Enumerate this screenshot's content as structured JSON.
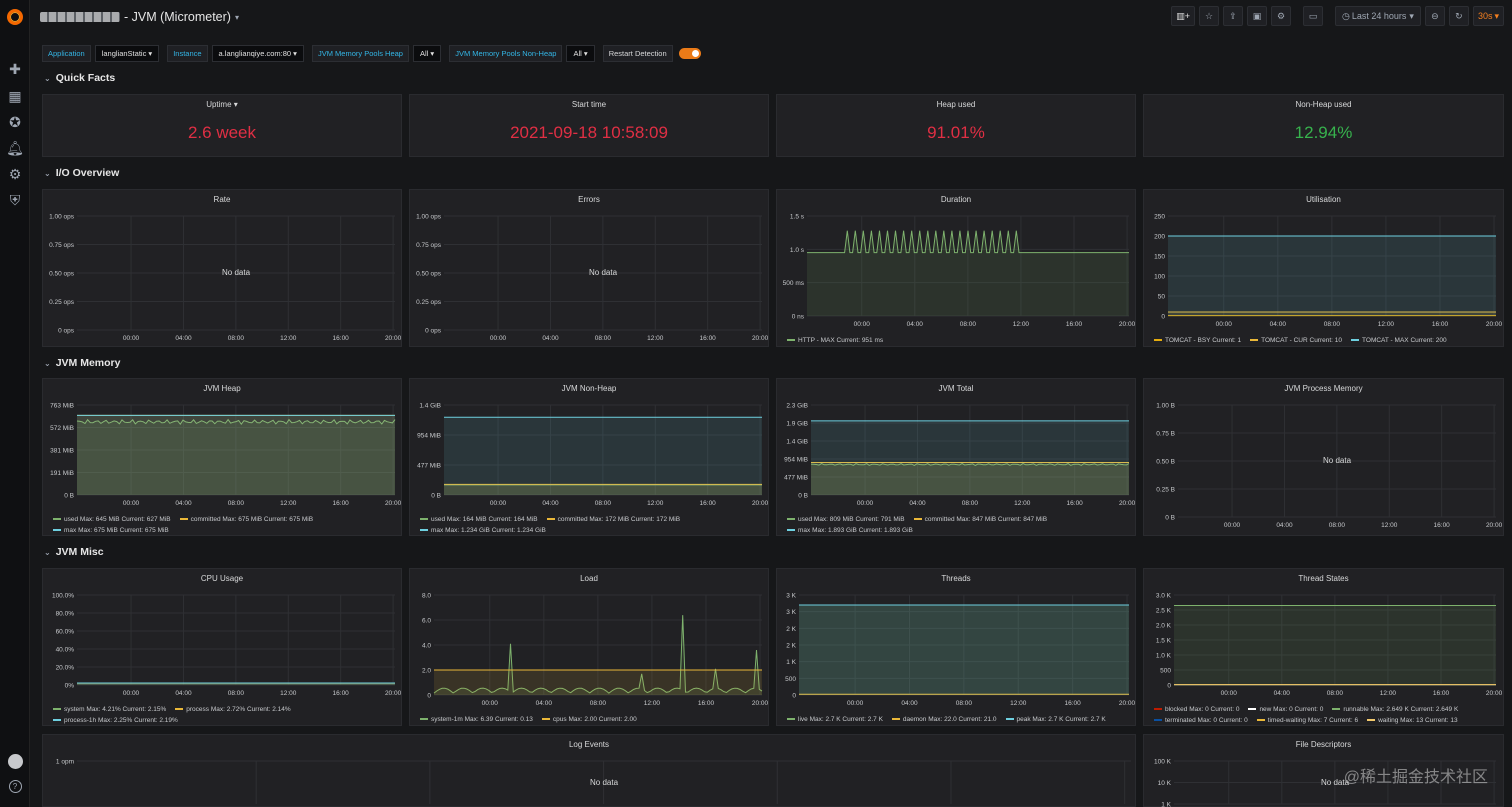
{
  "header": {
    "title": "- JVM (Micrometer)",
    "time_range": "Last 24 hours",
    "refresh": "30s"
  },
  "variables": [
    {
      "label": "Application",
      "value": "langlianStatic"
    },
    {
      "label": "Instance",
      "value": "a.langlianqiye.com:80"
    },
    {
      "label": "JVM Memory Pools Heap",
      "value": "All"
    },
    {
      "label": "JVM Memory Pools Non-Heap",
      "value": "All"
    }
  ],
  "restart_detection": {
    "label": "Restart Detection",
    "enabled": true
  },
  "rows": {
    "quick_facts": "Quick Facts",
    "io_overview": "I/O Overview",
    "jvm_memory": "JVM Memory",
    "jvm_misc": "JVM Misc"
  },
  "stats": [
    {
      "title": "Uptime",
      "value": "2.6 week",
      "color": "#e02f44"
    },
    {
      "title": "Start time",
      "value": "2021-09-18 10:58:09",
      "color": "#e02f44"
    },
    {
      "title": "Heap used",
      "value": "91.01%",
      "color": "#e02f44"
    },
    {
      "title": "Non-Heap used",
      "value": "12.94%",
      "color": "#37b24d"
    }
  ],
  "no_data": "No data",
  "x_ticks": [
    "00:00",
    "04:00",
    "08:00",
    "12:00",
    "16:00",
    "20:00"
  ],
  "chart_data": [
    {
      "title": "Rate",
      "type": "line",
      "y_ticks": [
        "1.00 ops",
        "0.75 ops",
        "0.50 ops",
        "0.25 ops",
        "0 ops"
      ],
      "series": []
    },
    {
      "title": "Errors",
      "type": "line",
      "y_ticks": [
        "1.00 ops",
        "0.75 ops",
        "0.50 ops",
        "0.25 ops",
        "0 ops"
      ],
      "series": []
    },
    {
      "title": "Duration",
      "type": "line",
      "y_ticks": [
        "1.5 s",
        "1.0 s",
        "500 ms",
        "0 ns"
      ],
      "ylim": [
        0,
        1.5
      ],
      "series": [
        {
          "name": "HTTP - MAX",
          "legend": "Current: 951 ms",
          "color": "#7eb26d",
          "base": 0.951,
          "spike": 1.28
        }
      ]
    },
    {
      "title": "Utilisation",
      "type": "line",
      "y_ticks": [
        "250",
        "200",
        "150",
        "100",
        "50",
        "0"
      ],
      "ylim": [
        0,
        250
      ],
      "series": [
        {
          "name": "TOMCAT - BSY",
          "legend": "Current: 1",
          "color": "#e5ac0e",
          "value": 1
        },
        {
          "name": "TOMCAT - CUR",
          "legend": "Current: 10",
          "color": "#eab839",
          "value": 10
        },
        {
          "name": "TOMCAT - MAX",
          "legend": "Current: 200",
          "color": "#6ed0e0",
          "value": 200
        }
      ]
    },
    {
      "title": "JVM Heap",
      "type": "area",
      "y_ticks": [
        "763 MiB",
        "572 MiB",
        "381 MiB",
        "191 MiB",
        "0 B"
      ],
      "ylim": [
        0,
        763
      ],
      "series": [
        {
          "name": "used",
          "legend": "Max: 645 MiB  Current: 627 MiB",
          "color": "#7eb26d",
          "value": 620,
          "wave": 25
        },
        {
          "name": "committed",
          "legend": "Max: 675 MiB  Current: 675 MiB",
          "color": "#eab839",
          "value": 675
        },
        {
          "name": "max",
          "legend": "Max: 675 MiB  Current: 675 MiB",
          "color": "#6ed0e0",
          "value": 675
        }
      ]
    },
    {
      "title": "JVM Non-Heap",
      "type": "area",
      "y_ticks": [
        "1.4 GiB",
        "954 MiB",
        "477 MiB",
        "0 B"
      ],
      "ylim": [
        0,
        1.43
      ],
      "series": [
        {
          "name": "used",
          "legend": "Max: 164 MiB  Current: 164 MiB",
          "color": "#7eb26d",
          "value": 0.16
        },
        {
          "name": "committed",
          "legend": "Max: 172 MiB  Current: 172 MiB",
          "color": "#eab839",
          "value": 0.168
        },
        {
          "name": "max",
          "legend": "Max: 1.234 GiB  Current: 1.234 GiB",
          "color": "#6ed0e0",
          "value": 1.234
        }
      ]
    },
    {
      "title": "JVM Total",
      "type": "area",
      "y_ticks": [
        "2.3 GiB",
        "1.9 GiB",
        "1.4 GiB",
        "954 MiB",
        "477 MiB",
        "0 B"
      ],
      "ylim": [
        0,
        2.3
      ],
      "series": [
        {
          "name": "used",
          "legend": "Max: 809 MiB  Current: 791 MiB",
          "color": "#7eb26d",
          "value": 0.78,
          "wave": 0.03
        },
        {
          "name": "committed",
          "legend": "Max: 847 MiB  Current: 847 MiB",
          "color": "#eab839",
          "value": 0.83
        },
        {
          "name": "max",
          "legend": "Max: 1.893 GiB  Current: 1.893 GiB",
          "color": "#6ed0e0",
          "value": 1.893
        }
      ]
    },
    {
      "title": "JVM Process Memory",
      "type": "line",
      "y_ticks": [
        "1.00 B",
        "0.75 B",
        "0.50 B",
        "0.25 B",
        "0 B"
      ],
      "series": []
    },
    {
      "title": "CPU Usage",
      "type": "line",
      "y_ticks": [
        "100.0%",
        "80.0%",
        "60.0%",
        "40.0%",
        "20.0%",
        "0%"
      ],
      "ylim": [
        0,
        100
      ],
      "series": [
        {
          "name": "system",
          "legend": "Max: 4.21%  Current: 2.15%",
          "color": "#7eb26d",
          "value": 2.15
        },
        {
          "name": "process",
          "legend": "Max: 2.72%  Current: 2.14%",
          "color": "#eab839",
          "value": 2.14
        },
        {
          "name": "process-1h",
          "legend": "Max: 2.25%  Current: 2.19%",
          "color": "#6ed0e0",
          "value": 2.19
        }
      ]
    },
    {
      "title": "Load",
      "type": "line",
      "y_ticks": [
        "8.0",
        "6.0",
        "4.0",
        "2.0",
        "0"
      ],
      "ylim": [
        0,
        8
      ],
      "series": [
        {
          "name": "system-1m",
          "legend": "Max: 6.39  Current: 0.13",
          "color": "#7eb26d",
          "value": 0.13
        },
        {
          "name": "cpus",
          "legend": "Max: 2.00  Current: 2.00",
          "color": "#eab839",
          "value": 2.0
        }
      ]
    },
    {
      "title": "Threads",
      "type": "area",
      "y_ticks": [
        "3 K",
        "3 K",
        "2 K",
        "2 K",
        "1 K",
        "500",
        "0"
      ],
      "ylim": [
        0,
        3000
      ],
      "series": [
        {
          "name": "live",
          "legend": "Max: 2.7 K  Current: 2.7 K",
          "color": "#7eb26d",
          "value": 2700
        },
        {
          "name": "daemon",
          "legend": "Max: 22.0  Current: 21.0",
          "color": "#eab839",
          "value": 21
        },
        {
          "name": "peak",
          "legend": "Max: 2.7 K  Current: 2.7 K",
          "color": "#6ed0e0",
          "value": 2700
        }
      ]
    },
    {
      "title": "Thread States",
      "type": "line",
      "y_ticks": [
        "3.0 K",
        "2.5 K",
        "2.0 K",
        "1.5 K",
        "1.0 K",
        "500",
        "0"
      ],
      "ylim": [
        0,
        3000
      ],
      "series": [
        {
          "name": "blocked",
          "legend": "Max: 0  Current: 0",
          "color": "#bf1b00",
          "value": 0
        },
        {
          "name": "new",
          "legend": "Max: 0  Current: 0",
          "color": "#ffffff",
          "value": 0
        },
        {
          "name": "runnable",
          "legend": "Max: 2.649 K  Current: 2.649 K",
          "color": "#7eb26d",
          "value": 2649
        },
        {
          "name": "terminated",
          "legend": "Max: 0  Current: 0",
          "color": "#0a50a1",
          "value": 0
        },
        {
          "name": "timed-waiting",
          "legend": "Max: 7  Current: 6",
          "color": "#eab839",
          "value": 6
        },
        {
          "name": "waiting",
          "legend": "Max: 13  Current: 13",
          "color": "#f2c96d",
          "value": 13
        }
      ]
    },
    {
      "title": "Log Events",
      "type": "line",
      "y_ticks": [
        "1 opm"
      ],
      "series": []
    },
    {
      "title": "File Descriptors",
      "type": "line",
      "y_ticks": [
        "100 K",
        "10 K",
        "1 K"
      ],
      "series": []
    }
  ],
  "watermark": "@稀土掘金技术社区"
}
